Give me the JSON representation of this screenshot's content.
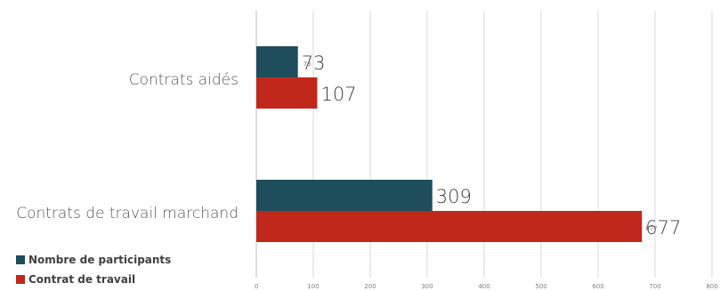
{
  "chart_data": {
    "type": "bar",
    "orientation": "horizontal",
    "categories": [
      "Contrats aidés",
      "Contrats de travail marchand"
    ],
    "series": [
      {
        "name": "Nombre de participants",
        "values": [
          73,
          309
        ],
        "color": "#1e4d5c"
      },
      {
        "name": "Contrat de travail",
        "values": [
          107,
          677
        ],
        "color": "#c0281c"
      }
    ],
    "small_labels": [
      "73",
      "677"
    ],
    "xlim": [
      0,
      800
    ],
    "xticks": [
      0,
      100,
      200,
      300,
      400,
      500,
      600,
      700,
      800
    ],
    "grid": true,
    "legend_position": "bottom-left"
  }
}
